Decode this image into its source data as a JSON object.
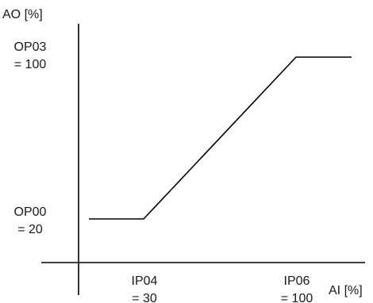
{
  "axes": {
    "y_label": "AO [%]",
    "x_label": "AI [%]"
  },
  "y_markers": {
    "top": {
      "code": "OP03",
      "value": "= 100",
      "numeric": 100
    },
    "bottom": {
      "code": "OP00",
      "value": "= 20",
      "numeric": 20
    }
  },
  "x_markers": {
    "left": {
      "code": "IP04",
      "value": "= 30",
      "numeric": 30
    },
    "right": {
      "code": "IP06",
      "value": "= 100",
      "numeric": 100
    }
  },
  "curve": {
    "points": [
      {
        "x": "start",
        "y": 20
      },
      {
        "x": 30,
        "y": 20
      },
      {
        "x": 100,
        "y": 100
      },
      {
        "x": "end",
        "y": 100
      }
    ]
  },
  "colors": {
    "line": "#000000",
    "text": "#1a1a1a",
    "background": "#ffffff"
  }
}
